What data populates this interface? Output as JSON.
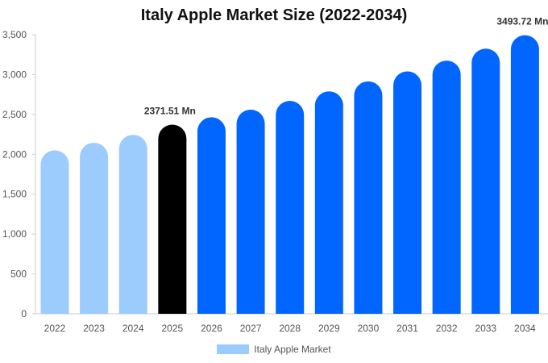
{
  "chart_data": {
    "type": "bar",
    "title": "Italy Apple Market Size (2022-2034)",
    "categories": [
      "2022",
      "2023",
      "2024",
      "2025",
      "2026",
      "2027",
      "2028",
      "2029",
      "2030",
      "2031",
      "2032",
      "2033",
      "2034"
    ],
    "series": [
      {
        "name": "Italy Apple Market",
        "values": [
          2050,
          2145,
          2245,
          2371.51,
          2465,
          2560,
          2670,
          2790,
          2915,
          3040,
          3175,
          3325,
          3493.72
        ]
      }
    ],
    "yticks": [
      "0",
      "500",
      "1,000",
      "1,500",
      "2,000",
      "2,500",
      "3,000",
      "3,500"
    ],
    "ylim": [
      0,
      3500
    ],
    "bar_colors": [
      "#9ccbfd",
      "#9ccbfd",
      "#9ccbfd",
      "#000000",
      "#0066ff",
      "#0066ff",
      "#0066ff",
      "#0066ff",
      "#0066ff",
      "#0066ff",
      "#0066ff",
      "#0066ff",
      "#0066ff"
    ],
    "annotations": [
      {
        "category": "2025",
        "text": "2371.51 Mn"
      },
      {
        "category": "2034",
        "text": "3493.72 Mn"
      }
    ],
    "legend_position": "bottom",
    "grid": false
  }
}
